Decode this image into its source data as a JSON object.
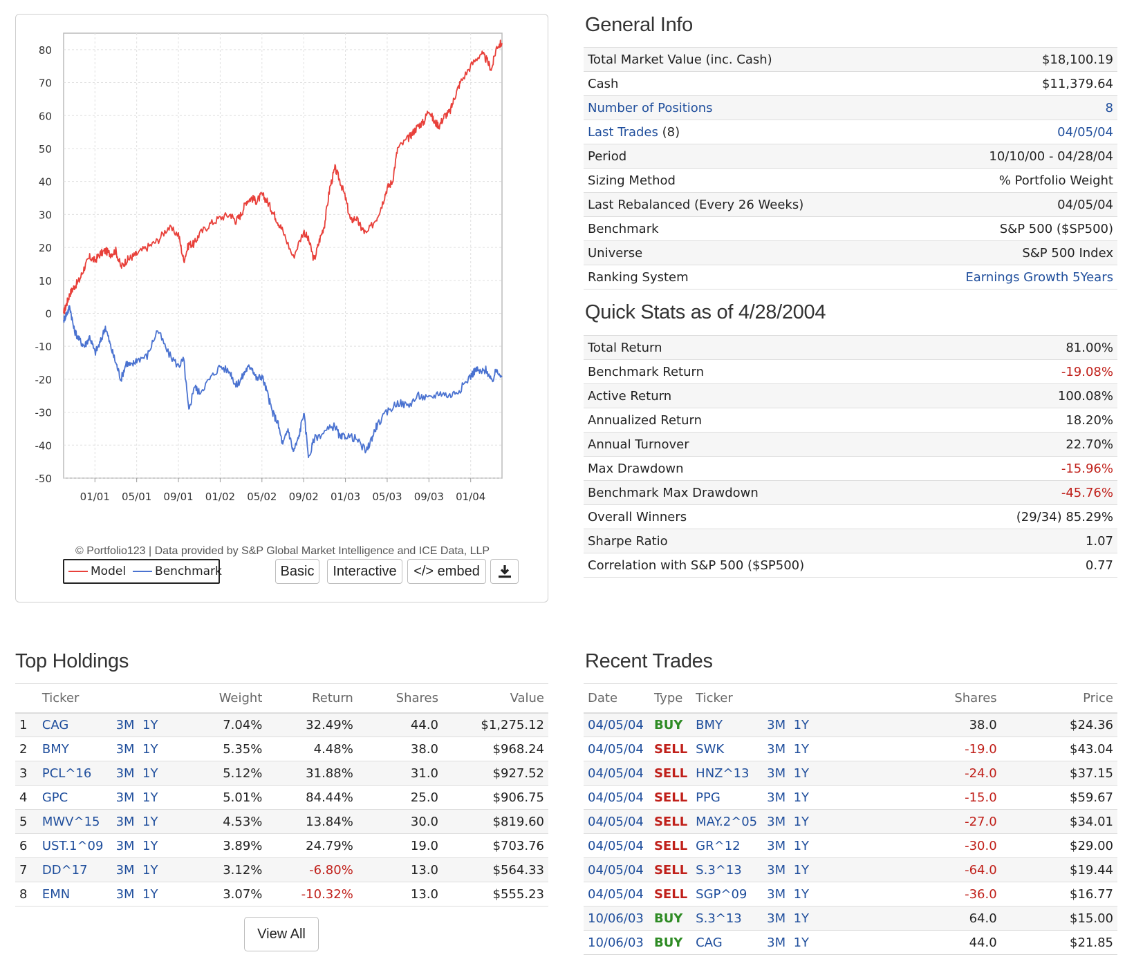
{
  "chart": {
    "credit": "© Portfolio123 | Data provided by S&P Global Market Intelligence and ICE Data, LLP",
    "legend_model": "Model",
    "legend_benchmark": "Benchmark",
    "btn_basic": "Basic",
    "btn_interactive": "Interactive",
    "btn_embed": "</> embed",
    "download_icon": "download-icon",
    "colors": {
      "model": "#e8403a",
      "benchmark": "#4a72d0"
    }
  },
  "chart_data": {
    "type": "line",
    "ylim": [
      -50,
      85
    ],
    "yticks": [
      "80",
      "70",
      "60",
      "50",
      "40",
      "30",
      "20",
      "10",
      "0",
      "-10",
      "-20",
      "-30",
      "-40",
      "-50"
    ],
    "xticks": [
      "01/01",
      "05/01",
      "09/01",
      "01/02",
      "05/02",
      "09/02",
      "01/03",
      "05/03",
      "09/03",
      "01/04"
    ],
    "grid": true,
    "legend_position": "bottom-left",
    "x_is_month_index_from_2000_10": true,
    "series": [
      {
        "name": "Model",
        "color": "#e8403a",
        "x": [
          0,
          0.3,
          0.6,
          1,
          1.5,
          2,
          2.5,
          3,
          3.5,
          4,
          4.5,
          5,
          5.5,
          6,
          6.5,
          7,
          8,
          9,
          10,
          11,
          11.5,
          12,
          12.5,
          13,
          14,
          15,
          16,
          16.5,
          17,
          17.5,
          18,
          18.5,
          19,
          19.5,
          20,
          20.5,
          21,
          22,
          23,
          23.5,
          24,
          24.5,
          25,
          25.5,
          26,
          26.5,
          27,
          27.5,
          28,
          28.5,
          29,
          30,
          30.5,
          31,
          31.5,
          32,
          33,
          33.5,
          34,
          34.5,
          35,
          35.5,
          36,
          36.5,
          37,
          37.5,
          38,
          39,
          40,
          40.5,
          41,
          41.5,
          42
        ],
        "values": [
          0,
          3,
          6,
          8,
          10,
          14,
          17,
          16,
          18,
          19,
          18,
          19,
          14,
          16,
          17,
          18,
          20,
          22,
          26,
          24,
          16,
          21,
          21,
          24,
          27,
          29,
          30,
          28,
          30,
          34,
          35,
          34,
          36,
          34,
          31,
          28,
          25,
          17,
          25,
          22,
          16,
          22,
          27,
          38,
          44,
          40,
          35,
          28,
          29,
          26,
          24,
          29,
          33,
          38,
          40,
          50,
          53,
          55,
          57,
          58,
          62,
          58,
          57,
          60,
          61,
          66,
          70,
          75,
          79,
          77,
          74,
          81,
          82
        ]
      },
      {
        "name": "Benchmark",
        "color": "#4a72d0",
        "x": [
          0,
          0.3,
          0.6,
          1,
          1.5,
          2,
          2.5,
          3,
          3.5,
          4,
          4.5,
          5,
          5.5,
          6,
          6.5,
          7,
          8,
          9,
          10,
          11,
          11.5,
          12,
          12.5,
          13,
          14,
          15,
          16,
          16.5,
          17,
          17.5,
          18,
          18.5,
          19,
          19.5,
          20,
          20.5,
          21,
          21.5,
          22,
          22.5,
          23,
          23.5,
          24,
          25,
          26,
          26.5,
          27,
          28,
          29,
          29.5,
          30,
          31,
          32,
          33,
          34,
          35,
          36,
          37,
          38,
          39,
          39.5,
          40,
          40.5,
          41,
          41.5,
          42
        ],
        "values": [
          -2,
          0,
          2,
          -5,
          -8,
          -10,
          -7,
          -12,
          -9,
          -4,
          -10,
          -15,
          -20,
          -15,
          -16,
          -14,
          -13,
          -5,
          -12,
          -16,
          -14,
          -30,
          -22,
          -24,
          -20,
          -16,
          -18,
          -22,
          -20,
          -17,
          -16,
          -20,
          -19,
          -24,
          -30,
          -33,
          -40,
          -35,
          -42,
          -38,
          -30,
          -44,
          -38,
          -36,
          -34,
          -38,
          -37,
          -38,
          -42,
          -38,
          -34,
          -30,
          -27,
          -28,
          -25,
          -26,
          -24,
          -25,
          -23,
          -19,
          -17,
          -18,
          -17,
          -21,
          -17,
          -19
        ]
      }
    ]
  },
  "general_info": {
    "title": "General Info",
    "rows": [
      {
        "label": "Total Market Value (inc. Cash)",
        "value": "$18,100.19"
      },
      {
        "label": "Cash",
        "value": "$11,379.64"
      },
      {
        "label": "Number of Positions",
        "value": "8"
      },
      {
        "label": "Last Trades",
        "label_suffix": " (8)",
        "value": "04/05/04"
      },
      {
        "label": "Period",
        "value": "10/10/00 - 04/28/04"
      },
      {
        "label": "Sizing Method",
        "value": "% Portfolio Weight"
      },
      {
        "label": "Last Rebalanced (Every 26 Weeks)",
        "value": "04/05/04"
      },
      {
        "label": "Benchmark",
        "value": "S&P 500 ($SP500)"
      },
      {
        "label": "Universe",
        "value": "S&P 500 Index"
      },
      {
        "label": "Ranking System",
        "value": "Earnings Growth 5Years"
      }
    ]
  },
  "quick_stats": {
    "title": "Quick Stats as of 4/28/2004",
    "rows": [
      {
        "label": "Total Return",
        "value": "81.00%"
      },
      {
        "label": "Benchmark Return",
        "value": "-19.08%"
      },
      {
        "label": "Active Return",
        "value": "100.08%"
      },
      {
        "label": "Annualized Return",
        "value": "18.20%"
      },
      {
        "label": "Annual Turnover",
        "value": "22.70%"
      },
      {
        "label": "Max Drawdown",
        "value": "-15.96%"
      },
      {
        "label": "Benchmark Max Drawdown",
        "value": "-45.76%"
      },
      {
        "label": "Overall Winners",
        "value": "(29/34) 85.29%"
      },
      {
        "label": "Sharpe Ratio",
        "value": "1.07"
      },
      {
        "label": "Correlation with S&P 500 ($SP500)",
        "value": "0.77"
      }
    ]
  },
  "top_holdings": {
    "title": "Top Holdings",
    "headers": {
      "ticker": "Ticker",
      "weight": "Weight",
      "ret": "Return",
      "shares": "Shares",
      "value": "Value"
    },
    "link_3m": "3M",
    "link_1y": "1Y",
    "view_all": "View All",
    "rows": [
      {
        "n": "1",
        "ticker": "CAG",
        "weight": "7.04%",
        "ret": "32.49%",
        "shares": "44.0",
        "value": "$1,275.12"
      },
      {
        "n": "2",
        "ticker": "BMY",
        "weight": "5.35%",
        "ret": "4.48%",
        "shares": "38.0",
        "value": "$968.24"
      },
      {
        "n": "3",
        "ticker": "PCL^16",
        "weight": "5.12%",
        "ret": "31.88%",
        "shares": "31.0",
        "value": "$927.52"
      },
      {
        "n": "4",
        "ticker": "GPC",
        "weight": "5.01%",
        "ret": "84.44%",
        "shares": "25.0",
        "value": "$906.75"
      },
      {
        "n": "5",
        "ticker": "MWV^15",
        "weight": "4.53%",
        "ret": "13.84%",
        "shares": "30.0",
        "value": "$819.60"
      },
      {
        "n": "6",
        "ticker": "UST.1^09",
        "weight": "3.89%",
        "ret": "24.79%",
        "shares": "19.0",
        "value": "$703.76"
      },
      {
        "n": "7",
        "ticker": "DD^17",
        "weight": "3.12%",
        "ret": "-6.80%",
        "shares": "13.0",
        "value": "$564.33"
      },
      {
        "n": "8",
        "ticker": "EMN",
        "weight": "3.07%",
        "ret": "-10.32%",
        "shares": "13.0",
        "value": "$555.23"
      }
    ]
  },
  "recent_trades": {
    "title": "Recent Trades",
    "headers": {
      "date": "Date",
      "type": "Type",
      "ticker": "Ticker",
      "shares": "Shares",
      "price": "Price"
    },
    "link_3m": "3M",
    "link_1y": "1Y",
    "rows": [
      {
        "date": "04/05/04",
        "type": "BUY",
        "ticker": "BMY",
        "shares": "38.0",
        "price": "$24.36"
      },
      {
        "date": "04/05/04",
        "type": "SELL",
        "ticker": "SWK",
        "shares": "-19.0",
        "price": "$43.04"
      },
      {
        "date": "04/05/04",
        "type": "SELL",
        "ticker": "HNZ^13",
        "shares": "-24.0",
        "price": "$37.15"
      },
      {
        "date": "04/05/04",
        "type": "SELL",
        "ticker": "PPG",
        "shares": "-15.0",
        "price": "$59.67"
      },
      {
        "date": "04/05/04",
        "type": "SELL",
        "ticker": "MAY.2^05",
        "shares": "-27.0",
        "price": "$34.01"
      },
      {
        "date": "04/05/04",
        "type": "SELL",
        "ticker": "GR^12",
        "shares": "-30.0",
        "price": "$29.00"
      },
      {
        "date": "04/05/04",
        "type": "SELL",
        "ticker": "S.3^13",
        "shares": "-64.0",
        "price": "$19.44"
      },
      {
        "date": "04/05/04",
        "type": "SELL",
        "ticker": "SGP^09",
        "shares": "-36.0",
        "price": "$16.77"
      },
      {
        "date": "10/06/03",
        "type": "BUY",
        "ticker": "S.3^13",
        "shares": "64.0",
        "price": "$15.00"
      },
      {
        "date": "10/06/03",
        "type": "BUY",
        "ticker": "CAG",
        "shares": "44.0",
        "price": "$21.85"
      }
    ]
  }
}
